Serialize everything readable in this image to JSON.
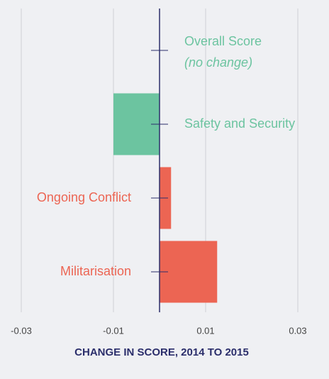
{
  "chart_data": {
    "type": "hbar",
    "categories": [
      "Overall Score",
      "Safety and Security",
      "Ongoing Conflict",
      "Militarisation"
    ],
    "values": [
      0,
      -0.01,
      0.0025,
      0.0125
    ],
    "colors": [
      "#6cc4a0",
      "#6cc4a0",
      "#ec6553",
      "#ec6553"
    ],
    "annotation": "(no change)",
    "xlabel": "CHANGE IN SCORE, 2014 TO 2015",
    "xlim": [
      -0.03,
      0.03
    ],
    "xticks": [
      -0.03,
      -0.01,
      0.01,
      0.03
    ],
    "grid": true
  }
}
